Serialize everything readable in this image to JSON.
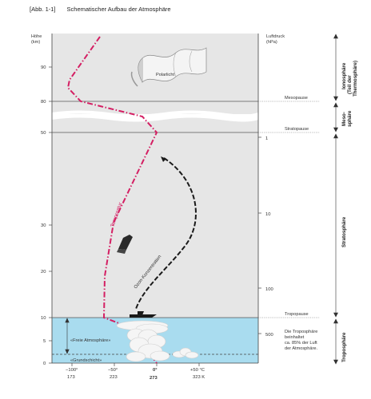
{
  "figure": {
    "number": "[Abb. 1-1]",
    "title": "Schematischer Aufbau der Atmosphäre"
  },
  "axes": {
    "left_label_line1": "Höhe",
    "left_label_line2": "(km)",
    "left_ticks": [
      "90",
      "80",
      "50",
      "30",
      "20",
      "10",
      "5",
      "0"
    ],
    "right_label_line1": "Luftdruck",
    "right_label_line2": "(hPa)",
    "right_ticks": [
      "1",
      "10",
      "100",
      "500"
    ],
    "celsius_ticks": [
      "−100°",
      "−50°",
      "0°",
      "+50 °C"
    ],
    "kelvin_ticks": [
      "173",
      "223",
      "273",
      "323 K"
    ]
  },
  "boundaries": {
    "mesopause": "Mesopause",
    "stratopause": "Stratopause",
    "tropopause": "Tropopause"
  },
  "layers": {
    "ionosphere": "Ionosphäre",
    "ionosphere_note1": "(Teil der",
    "ionosphere_note2": "Thermosphäre)",
    "mesosphere1": "Meso-",
    "mesosphere2": "sphäre",
    "stratosphere": "Stratosphäre",
    "troposphere": "Troposphäre"
  },
  "labels": {
    "polarlicht": "Polarlicht",
    "temperature": "Temperatur",
    "ozone": "Ozon-Konzentration",
    "freie_atmosphaere": "«Freie Atmosphäre»",
    "grundschicht": "«Grundschicht»",
    "tropo_note": [
      "Die Troposphäre",
      "beinhaltet",
      "ca. 85% der Luft",
      "der Atmosphäre."
    ]
  },
  "colors": {
    "temperature_curve": "#d41f63",
    "troposphere_fill": "#a9dcef",
    "panel_fill": "#e6e6e6"
  }
}
